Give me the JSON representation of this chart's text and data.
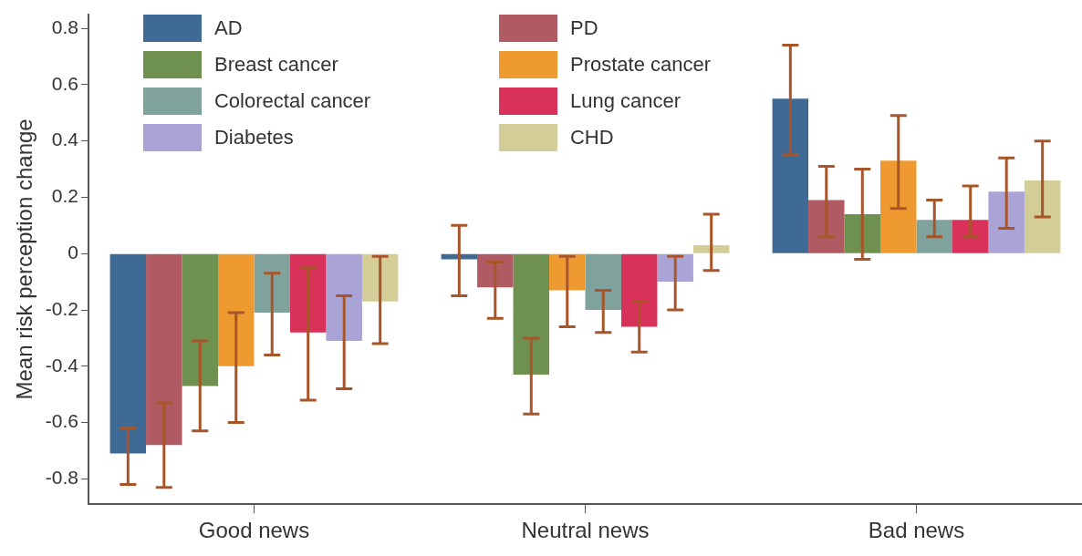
{
  "chart_data": {
    "type": "bar",
    "ylabel": "Mean risk perception change",
    "categories": [
      "Good news",
      "Neutral news",
      "Bad news"
    ],
    "ylim": [
      -0.89,
      0.85
    ],
    "yticks": [
      -0.8,
      -0.6,
      -0.4,
      -0.2,
      0,
      0.2,
      0.4,
      0.6,
      0.8
    ],
    "grid": false,
    "legend": "top left",
    "series": [
      {
        "name": "AD",
        "color": "#3f6a96",
        "values": [
          -0.71,
          -0.02,
          0.55
        ],
        "errors": [
          [
            -0.82,
            -0.62
          ],
          [
            -0.15,
            0.1
          ],
          [
            0.35,
            0.74
          ]
        ]
      },
      {
        "name": "PD",
        "color": "#b05a64",
        "values": [
          -0.68,
          -0.12,
          0.19
        ],
        "errors": [
          [
            -0.83,
            -0.53
          ],
          [
            -0.23,
            -0.03
          ],
          [
            0.06,
            0.31
          ]
        ]
      },
      {
        "name": "Breast cancer",
        "color": "#6e9150",
        "values": [
          -0.47,
          -0.43,
          0.14
        ],
        "errors": [
          [
            -0.63,
            -0.31
          ],
          [
            -0.57,
            -0.3
          ],
          [
            -0.02,
            0.3
          ]
        ]
      },
      {
        "name": "Prostate cancer",
        "color": "#ee9a30",
        "values": [
          -0.4,
          -0.13,
          0.33
        ],
        "errors": [
          [
            -0.6,
            -0.21
          ],
          [
            -0.26,
            -0.01
          ],
          [
            0.16,
            0.49
          ]
        ]
      },
      {
        "name": "Colorectal cancer",
        "color": "#7fa39c",
        "values": [
          -0.21,
          -0.2,
          0.12
        ],
        "errors": [
          [
            -0.36,
            -0.07
          ],
          [
            -0.28,
            -0.13
          ],
          [
            0.06,
            0.19
          ]
        ]
      },
      {
        "name": "Lung cancer",
        "color": "#d8315a",
        "values": [
          -0.28,
          -0.26,
          0.12
        ],
        "errors": [
          [
            -0.52,
            -0.05
          ],
          [
            -0.35,
            -0.17
          ],
          [
            0.06,
            0.24
          ]
        ]
      },
      {
        "name": "Diabetes",
        "color": "#a9a3d6",
        "values": [
          -0.31,
          -0.1,
          0.22
        ],
        "errors": [
          [
            -0.48,
            -0.15
          ],
          [
            -0.2,
            -0.01
          ],
          [
            0.09,
            0.34
          ]
        ]
      },
      {
        "name": "CHD",
        "color": "#d4cd98",
        "values": [
          -0.17,
          0.03,
          0.26
        ],
        "errors": [
          [
            -0.32,
            -0.01
          ],
          [
            -0.06,
            0.14
          ],
          [
            0.13,
            0.4
          ]
        ]
      }
    ]
  }
}
